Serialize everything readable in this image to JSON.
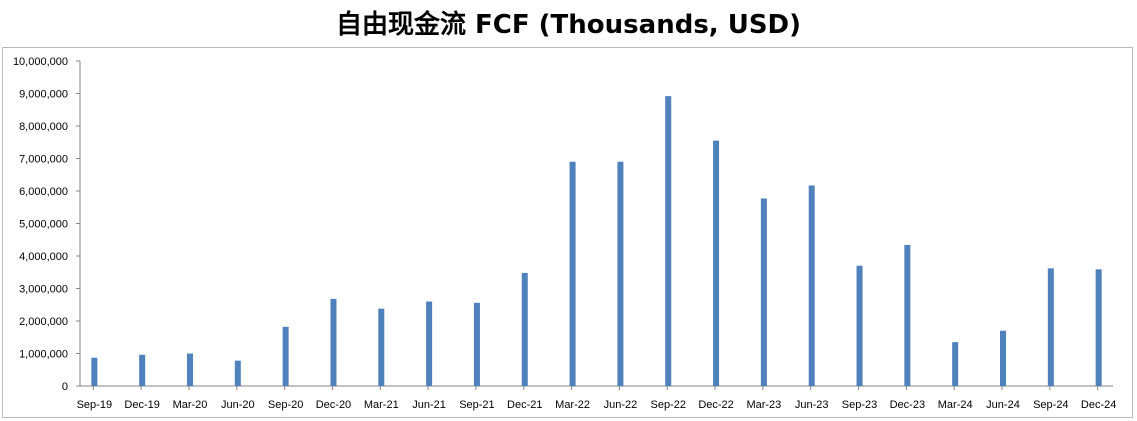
{
  "chart_data": {
    "type": "bar",
    "title": "自由现金流 FCF (Thousands, USD)",
    "xlabel": "",
    "ylabel": "",
    "ylim": [
      0,
      10000000
    ],
    "y_ticks": [
      "0",
      "1,000,000",
      "2,000,000",
      "3,000,000",
      "4,000,000",
      "5,000,000",
      "6,000,000",
      "7,000,000",
      "8,000,000",
      "9,000,000",
      "10,000,000"
    ],
    "y_tick_values": [
      0,
      1000000,
      2000000,
      3000000,
      4000000,
      5000000,
      6000000,
      7000000,
      8000000,
      9000000,
      10000000
    ],
    "categories": [
      "Sep-19",
      "Dec-19",
      "Mar-20",
      "Jun-20",
      "Sep-20",
      "Dec-20",
      "Mar-21",
      "Jun-21",
      "Sep-21",
      "Dec-21",
      "Mar-22",
      "Jun-22",
      "Sep-22",
      "Dec-22",
      "Mar-23",
      "Jun-23",
      "Sep-23",
      "Dec-23",
      "Mar-24",
      "Jun-24",
      "Sep-24",
      "Dec-24"
    ],
    "values": [
      870000,
      960000,
      1000000,
      780000,
      1820000,
      2680000,
      2380000,
      2600000,
      2560000,
      3480000,
      6900000,
      6900000,
      8920000,
      7550000,
      5770000,
      6170000,
      3700000,
      4340000,
      1350000,
      1700000,
      3620000,
      3590000
    ],
    "bar_color": "#4f81bd",
    "grid": false,
    "legend": "none"
  }
}
